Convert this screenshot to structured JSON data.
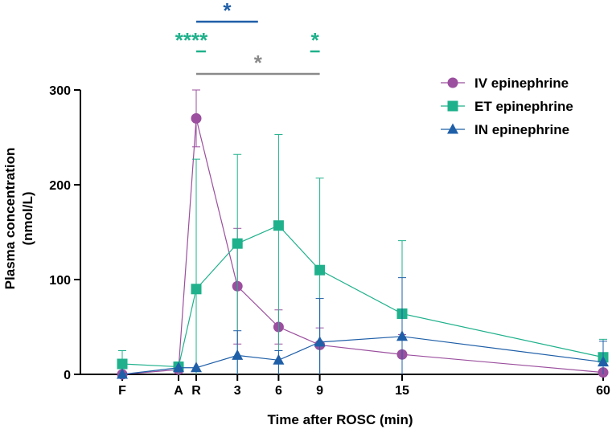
{
  "chart_data": {
    "type": "line",
    "title": "",
    "xlabel": "Time after ROSC (min)",
    "ylabel_line1": "Plasma concentration",
    "ylabel_line2": "(nmol/L)",
    "ylim": [
      0,
      300
    ],
    "y_ticks": [
      0,
      100,
      200,
      300
    ],
    "x_ticks": [
      {
        "label": "F",
        "x": -4.5
      },
      {
        "label": "A",
        "x": -1.2
      },
      {
        "label": "R",
        "x": 0
      },
      {
        "label": "3",
        "x": 3
      },
      {
        "label": "6",
        "x": 6
      },
      {
        "label": "9",
        "x": 9
      },
      {
        "label": "15",
        "x": 15
      },
      {
        "label": "60",
        "x": 60
      }
    ],
    "x_break": {
      "before": 15,
      "after": 60
    },
    "grid": false,
    "legend_position": "top-right",
    "series": [
      {
        "name": "IV epinephrine",
        "color": "#9b4f9e",
        "marker": "circle",
        "x": [
          -4.5,
          -1.2,
          0,
          3,
          6,
          9,
          15,
          60
        ],
        "y": [
          0,
          5,
          270,
          93,
          50,
          31,
          21,
          2
        ],
        "err_low": [
          0,
          0,
          30,
          61,
          18,
          31,
          21,
          2
        ],
        "err_high": [
          0,
          0,
          30,
          61,
          18,
          18,
          21,
          2
        ]
      },
      {
        "name": "ET epinephrine",
        "color": "#1fb18b",
        "marker": "square",
        "x": [
          -4.5,
          -1.2,
          0,
          3,
          6,
          9,
          15,
          60
        ],
        "y": [
          11,
          8,
          90,
          138,
          157,
          110,
          64,
          18
        ],
        "err_low": [
          11,
          8,
          90,
          138,
          157,
          110,
          64,
          18
        ],
        "err_high": [
          14,
          5,
          137,
          94,
          96,
          97,
          77,
          19
        ]
      },
      {
        "name": "IN epinephrine",
        "color": "#1f5fa8",
        "marker": "triangle",
        "x": [
          -4.5,
          -1.2,
          0,
          3,
          6,
          9,
          15,
          60
        ],
        "y": [
          0,
          7,
          7,
          20,
          15,
          34,
          40,
          13
        ],
        "err_low": [
          0,
          0,
          0,
          20,
          15,
          34,
          40,
          13
        ],
        "err_high": [
          0,
          0,
          0,
          26,
          10,
          46,
          62,
          22
        ]
      }
    ],
    "significance": [
      {
        "text": "*",
        "color": "#1f5fa8",
        "x1": 0,
        "x2": 4.5,
        "row": 0
      },
      {
        "text": "****",
        "color": "#1fb18b",
        "x1": 0,
        "x2": 0.7,
        "row": 1
      },
      {
        "text": "*",
        "color": "#1fb18b",
        "x1": 8.3,
        "x2": 9,
        "row": 1
      },
      {
        "text": "*",
        "color": "#8a8a8a",
        "x1": 0,
        "x2": 9,
        "row": 2
      }
    ]
  }
}
